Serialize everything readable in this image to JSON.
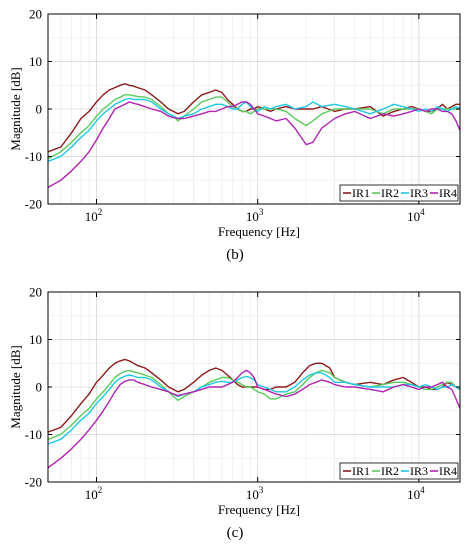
{
  "figure": {
    "panels": [
      {
        "label": "(b)"
      },
      {
        "label": "(c)"
      }
    ]
  },
  "chart_data": [
    {
      "type": "line",
      "panel": "(b)",
      "xlabel": "Frequency [Hz]",
      "ylabel": "Magnitude [dB]",
      "xscale": "log",
      "xlim": [
        50,
        18000
      ],
      "ylim": [
        -20,
        20
      ],
      "xticks": [
        100,
        1000,
        10000
      ],
      "xtick_labels": [
        {
          "base": "10",
          "exp": "2"
        },
        {
          "base": "10",
          "exp": "3"
        },
        {
          "base": "10",
          "exp": "4"
        }
      ],
      "yticks": [
        -20,
        -10,
        0,
        10,
        20
      ],
      "grid": true,
      "legend": {
        "placement": "bottom-right",
        "orientation": "horizontal"
      },
      "series": [
        {
          "name": "IR1",
          "color": "#8b1a1a",
          "x": [
            50,
            60,
            70,
            80,
            90,
            100,
            110,
            120,
            130,
            140,
            150,
            160,
            170,
            180,
            200,
            220,
            250,
            280,
            300,
            320,
            350,
            400,
            450,
            500,
            550,
            600,
            650,
            700,
            750,
            800,
            850,
            900,
            950,
            1000,
            1100,
            1200,
            1300,
            1500,
            1700,
            2000,
            2200,
            2500,
            3000,
            3500,
            4000,
            5000,
            6000,
            7000,
            8000,
            9000,
            10000,
            11000,
            12000,
            13000,
            14000,
            15000,
            16000,
            17000,
            18000
          ],
          "y": [
            -9,
            -8,
            -5,
            -2,
            -0.5,
            1.5,
            3,
            4,
            4.5,
            5,
            5.3,
            5,
            4.8,
            4.5,
            4,
            3,
            1.5,
            0,
            -0.5,
            -1,
            -0.5,
            1.5,
            3,
            3.5,
            4,
            3.5,
            2,
            1,
            0,
            -0.5,
            -0.5,
            0,
            0,
            0.5,
            0,
            -0.5,
            0,
            0.5,
            0,
            0,
            0,
            0.5,
            -0.5,
            0,
            0,
            0.5,
            -1.5,
            -0.5,
            0,
            0.5,
            0,
            -0.5,
            -0.5,
            0,
            1,
            0,
            0.5,
            1,
            1
          ]
        },
        {
          "name": "IR2",
          "color": "#5cc95c",
          "x": [
            50,
            60,
            70,
            80,
            90,
            100,
            110,
            120,
            130,
            140,
            150,
            160,
            170,
            180,
            200,
            220,
            250,
            280,
            300,
            320,
            350,
            400,
            450,
            500,
            550,
            600,
            650,
            700,
            750,
            800,
            850,
            900,
            950,
            1000,
            1100,
            1200,
            1300,
            1500,
            1700,
            2000,
            2200,
            2500,
            3000,
            3500,
            4000,
            5000,
            6000,
            7000,
            8000,
            9000,
            10000,
            11000,
            12000,
            13000,
            14000,
            15000,
            16000,
            17000,
            18000
          ],
          "y": [
            -10.5,
            -9,
            -7,
            -5,
            -3.5,
            -1.5,
            0,
            1,
            2,
            2.5,
            3,
            3,
            2.8,
            2.6,
            2.5,
            2,
            0.5,
            -1,
            -1.5,
            -2.5,
            -1.5,
            0,
            1.5,
            2,
            2.5,
            2.5,
            1.5,
            0.5,
            0,
            -0.5,
            -0.5,
            -1,
            -0.5,
            0,
            0,
            0,
            0,
            -0.5,
            -2,
            -3.5,
            -2.5,
            -1,
            0,
            0,
            0,
            0,
            -1,
            0,
            0,
            0,
            0,
            -0.5,
            -1,
            0,
            0,
            0,
            0,
            0,
            0
          ]
        },
        {
          "name": "IR3",
          "color": "#1ec8e6",
          "x": [
            50,
            60,
            70,
            80,
            90,
            100,
            110,
            120,
            130,
            140,
            150,
            160,
            170,
            180,
            200,
            220,
            250,
            280,
            300,
            320,
            350,
            400,
            450,
            500,
            550,
            600,
            650,
            700,
            750,
            800,
            850,
            900,
            950,
            1000,
            1100,
            1200,
            1300,
            1500,
            1700,
            2000,
            2200,
            2500,
            3000,
            3500,
            4000,
            5000,
            6000,
            7000,
            8000,
            9000,
            10000,
            11000,
            12000,
            13000,
            14000,
            15000,
            16000,
            17000,
            18000
          ],
          "y": [
            -11,
            -10,
            -8,
            -6,
            -4.5,
            -2.5,
            -1,
            0,
            1,
            1.5,
            2,
            2.2,
            2,
            2,
            2,
            1.5,
            0,
            -1,
            -1.5,
            -2,
            -1.5,
            -1,
            0,
            0.5,
            1,
            1,
            0.5,
            0,
            0,
            1,
            1.5,
            0.5,
            0,
            -0.5,
            0.5,
            0,
            0.5,
            1,
            0,
            0.5,
            1.5,
            0.5,
            1,
            0.5,
            0,
            -1,
            0,
            1,
            0.5,
            0,
            -0.5,
            0,
            -0.5,
            0.5,
            0,
            -0.5,
            0,
            0.5,
            0
          ]
        },
        {
          "name": "IR4",
          "color": "#b023b0",
          "x": [
            50,
            60,
            70,
            80,
            90,
            100,
            110,
            120,
            130,
            140,
            150,
            160,
            170,
            180,
            200,
            220,
            250,
            280,
            300,
            320,
            350,
            400,
            450,
            500,
            550,
            600,
            650,
            700,
            750,
            800,
            850,
            900,
            950,
            1000,
            1100,
            1200,
            1300,
            1500,
            1700,
            2000,
            2200,
            2500,
            3000,
            3500,
            4000,
            5000,
            6000,
            7000,
            8000,
            9000,
            10000,
            11000,
            12000,
            13000,
            14000,
            15000,
            16000,
            17000,
            18000
          ],
          "y": [
            -16.5,
            -15,
            -13,
            -11,
            -9,
            -6.5,
            -4,
            -2,
            0,
            0.5,
            1,
            1.5,
            1.2,
            1,
            0.5,
            0,
            -0.5,
            -1.5,
            -1.8,
            -2,
            -2,
            -1.5,
            -1,
            -0.5,
            -0.5,
            0,
            0.5,
            0.5,
            1,
            1.5,
            1.5,
            1,
            0,
            -1,
            -1.5,
            -2,
            -2.5,
            -2,
            -4,
            -7.5,
            -7,
            -4,
            -2,
            -1,
            -0.5,
            -2,
            -1,
            -1.5,
            -1,
            -0.5,
            0,
            -0.5,
            0,
            0,
            -0.5,
            -0.5,
            -1,
            -2.5,
            -4.5
          ]
        }
      ]
    },
    {
      "type": "line",
      "panel": "(c)",
      "xlabel": "Frequency [Hz]",
      "ylabel": "Magnitude [dB]",
      "xscale": "log",
      "xlim": [
        50,
        18000
      ],
      "ylim": [
        -20,
        20
      ],
      "xticks": [
        100,
        1000,
        10000
      ],
      "xtick_labels": [
        {
          "base": "10",
          "exp": "2"
        },
        {
          "base": "10",
          "exp": "3"
        },
        {
          "base": "10",
          "exp": "4"
        }
      ],
      "yticks": [
        -20,
        -10,
        0,
        10,
        20
      ],
      "grid": true,
      "legend": {
        "placement": "bottom-right",
        "orientation": "horizontal"
      },
      "series": [
        {
          "name": "IR1",
          "color": "#8b1a1a",
          "x": [
            50,
            60,
            70,
            80,
            90,
            100,
            110,
            120,
            130,
            140,
            150,
            160,
            170,
            180,
            200,
            220,
            250,
            280,
            300,
            320,
            350,
            400,
            450,
            500,
            550,
            600,
            650,
            700,
            750,
            800,
            850,
            900,
            950,
            1000,
            1100,
            1200,
            1300,
            1500,
            1700,
            1900,
            2100,
            2300,
            2500,
            2800,
            3000,
            3500,
            4000,
            5000,
            6000,
            7000,
            8000,
            9000,
            10000,
            11000,
            12000,
            13000,
            14000,
            15000,
            16000,
            17000,
            18000
          ],
          "y": [
            -9.5,
            -8.5,
            -6,
            -3.5,
            -1.5,
            1,
            2.5,
            4,
            5,
            5.5,
            5.8,
            5.5,
            5,
            4.5,
            4,
            3,
            1.5,
            0,
            -0.5,
            -1,
            -0.5,
            1,
            2.5,
            3.5,
            4,
            3.5,
            2.5,
            1.5,
            0.5,
            0,
            0,
            0,
            0,
            0,
            -0.5,
            -0.5,
            0,
            0,
            1,
            3,
            4.5,
            5,
            5,
            4,
            2,
            1,
            0.5,
            1,
            0.5,
            1.5,
            2,
            1,
            0,
            0,
            -0.5,
            -0.5,
            0,
            1,
            0.5,
            0,
            -0.5
          ]
        },
        {
          "name": "IR2",
          "color": "#5cc95c",
          "x": [
            50,
            60,
            70,
            80,
            90,
            100,
            110,
            120,
            130,
            140,
            150,
            160,
            170,
            180,
            200,
            220,
            250,
            280,
            300,
            320,
            350,
            400,
            450,
            500,
            550,
            600,
            650,
            700,
            750,
            800,
            850,
            900,
            950,
            1000,
            1100,
            1200,
            1300,
            1500,
            1700,
            1900,
            2100,
            2300,
            2500,
            2800,
            3000,
            3500,
            4000,
            5000,
            6000,
            7000,
            8000,
            9000,
            10000,
            11000,
            12000,
            13000,
            14000,
            15000,
            16000,
            17000,
            18000
          ],
          "y": [
            -11,
            -10,
            -8,
            -6,
            -4.5,
            -2.5,
            -1,
            0.5,
            2,
            2.8,
            3.3,
            3.5,
            3.2,
            3,
            2.5,
            2,
            0.5,
            -1,
            -2,
            -2.8,
            -2,
            -1,
            0,
            1,
            1.5,
            2,
            2,
            1.5,
            1,
            0.5,
            0,
            0,
            -0.5,
            -1,
            -1.5,
            -2.5,
            -2.5,
            -1.5,
            -1,
            0.5,
            2,
            3,
            3.5,
            3,
            2,
            1,
            0.5,
            0,
            0.5,
            1,
            1,
            0.5,
            0,
            -0.5,
            -0.5,
            0,
            0.5,
            1,
            1,
            0,
            -0.5
          ]
        },
        {
          "name": "IR3",
          "color": "#1ec8e6",
          "x": [
            50,
            60,
            70,
            80,
            90,
            100,
            110,
            120,
            130,
            140,
            150,
            160,
            170,
            180,
            200,
            220,
            250,
            280,
            300,
            320,
            350,
            400,
            450,
            500,
            550,
            600,
            650,
            700,
            750,
            800,
            850,
            900,
            950,
            1000,
            1100,
            1200,
            1300,
            1500,
            1700,
            1900,
            2100,
            2300,
            2500,
            2800,
            3000,
            3500,
            4000,
            5000,
            6000,
            7000,
            8000,
            9000,
            10000,
            11000,
            12000,
            13000,
            14000,
            15000,
            16000,
            17000,
            18000
          ],
          "y": [
            -12,
            -11,
            -9,
            -7,
            -5.5,
            -3.5,
            -2,
            -0.5,
            1,
            1.8,
            2.3,
            2.5,
            2.3,
            2,
            2,
            1.5,
            0,
            -1,
            -1.5,
            -2,
            -1.5,
            -1,
            0,
            0.5,
            1,
            1.2,
            1,
            1,
            1.5,
            2,
            2.2,
            2,
            1.5,
            0.5,
            0,
            -0.5,
            -1,
            -1,
            0,
            1.5,
            2.5,
            3,
            3,
            2,
            1,
            1,
            0.5,
            0,
            0,
            0,
            0.5,
            0.5,
            0,
            0.5,
            0,
            -0.5,
            0,
            0,
            0.5,
            0,
            -0.5
          ]
        },
        {
          "name": "IR4",
          "color": "#b023b0",
          "x": [
            50,
            60,
            70,
            80,
            90,
            100,
            110,
            120,
            130,
            140,
            150,
            160,
            170,
            180,
            200,
            220,
            250,
            280,
            300,
            320,
            350,
            400,
            450,
            500,
            550,
            600,
            650,
            700,
            750,
            800,
            850,
            900,
            950,
            1000,
            1100,
            1200,
            1300,
            1500,
            1700,
            1900,
            2100,
            2300,
            2500,
            2800,
            3000,
            3500,
            4000,
            5000,
            6000,
            7000,
            8000,
            9000,
            10000,
            11000,
            12000,
            13000,
            14000,
            15000,
            16000,
            17000,
            18000
          ],
          "y": [
            -17,
            -15,
            -13,
            -11,
            -9,
            -7,
            -5,
            -3,
            -1,
            0.5,
            1.2,
            1.5,
            1.5,
            1,
            0.5,
            0,
            -0.5,
            -1,
            -1.5,
            -1.8,
            -1.5,
            -1,
            -0.5,
            0,
            0,
            0,
            0.5,
            1,
            2,
            3,
            3.5,
            3,
            2,
            0,
            -0.5,
            -1,
            -1.5,
            -2,
            -1.5,
            -0.5,
            0.5,
            1,
            1.5,
            1,
            0.5,
            0,
            0,
            -0.5,
            -1,
            0,
            0.5,
            0,
            -0.5,
            0,
            0,
            0.5,
            1,
            0,
            -0.5,
            -2.5,
            -4.5
          ]
        }
      ]
    }
  ]
}
